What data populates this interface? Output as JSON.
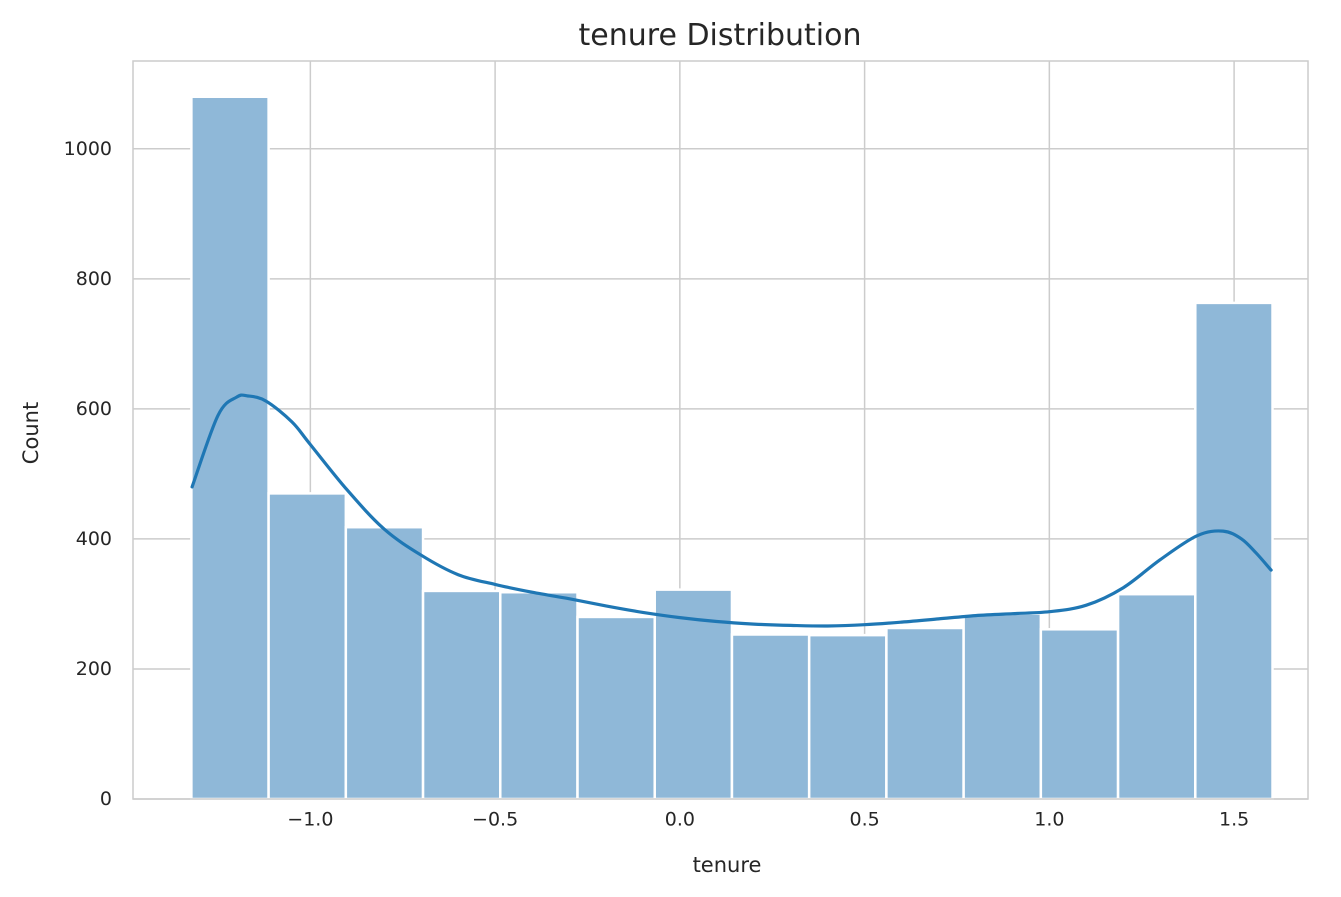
{
  "chart_data": {
    "type": "bar",
    "subtype": "histogram-with-kde",
    "title": "tenure Distribution",
    "xlabel": "tenure",
    "ylabel": "Count",
    "xlim": [
      -1.48,
      1.7
    ],
    "ylim": [
      0,
      1135
    ],
    "xticks": [
      -1.0,
      -0.5,
      0.0,
      0.5,
      1.0,
      1.5
    ],
    "xtick_labels": [
      "−1.0",
      "−0.5",
      "0.0",
      "0.5",
      "1.0",
      "1.5"
    ],
    "yticks": [
      0,
      200,
      400,
      600,
      800,
      1000
    ],
    "ytick_labels": [
      "0",
      "200",
      "400",
      "600",
      "800",
      "1000"
    ],
    "grid": true,
    "bar_color": "#8fb8d8",
    "kde_color": "#1f77b4",
    "bins": [
      {
        "x0": -1.322,
        "x1": -1.113,
        "count": 1080
      },
      {
        "x0": -1.113,
        "x1": -0.904,
        "count": 470
      },
      {
        "x0": -0.904,
        "x1": -0.695,
        "count": 418
      },
      {
        "x0": -0.695,
        "x1": -0.486,
        "count": 320
      },
      {
        "x0": -0.486,
        "x1": -0.277,
        "count": 318
      },
      {
        "x0": -0.277,
        "x1": -0.068,
        "count": 280
      },
      {
        "x0": -0.068,
        "x1": 0.141,
        "count": 322
      },
      {
        "x0": 0.141,
        "x1": 0.35,
        "count": 253
      },
      {
        "x0": 0.35,
        "x1": 0.559,
        "count": 252
      },
      {
        "x0": 0.559,
        "x1": 0.768,
        "count": 263
      },
      {
        "x0": 0.768,
        "x1": 0.977,
        "count": 285
      },
      {
        "x0": 0.977,
        "x1": 1.186,
        "count": 261
      },
      {
        "x0": 1.186,
        "x1": 1.395,
        "count": 315
      },
      {
        "x0": 1.395,
        "x1": 1.604,
        "count": 763
      }
    ],
    "kde": {
      "x": [
        -1.32,
        -1.25,
        -1.2,
        -1.17,
        -1.12,
        -1.05,
        -1.0,
        -0.9,
        -0.8,
        -0.7,
        -0.6,
        -0.5,
        -0.4,
        -0.3,
        -0.2,
        -0.1,
        0.0,
        0.1,
        0.2,
        0.3,
        0.4,
        0.5,
        0.6,
        0.7,
        0.8,
        0.9,
        1.0,
        1.1,
        1.2,
        1.3,
        1.4,
        1.47,
        1.52,
        1.56,
        1.6
      ],
      "y": [
        480,
        590,
        618,
        620,
        612,
        580,
        545,
        475,
        415,
        375,
        345,
        330,
        318,
        308,
        297,
        287,
        279,
        273,
        269,
        267,
        266,
        268,
        272,
        277,
        282,
        285,
        288,
        298,
        325,
        368,
        405,
        412,
        400,
        378,
        352
      ]
    }
  }
}
